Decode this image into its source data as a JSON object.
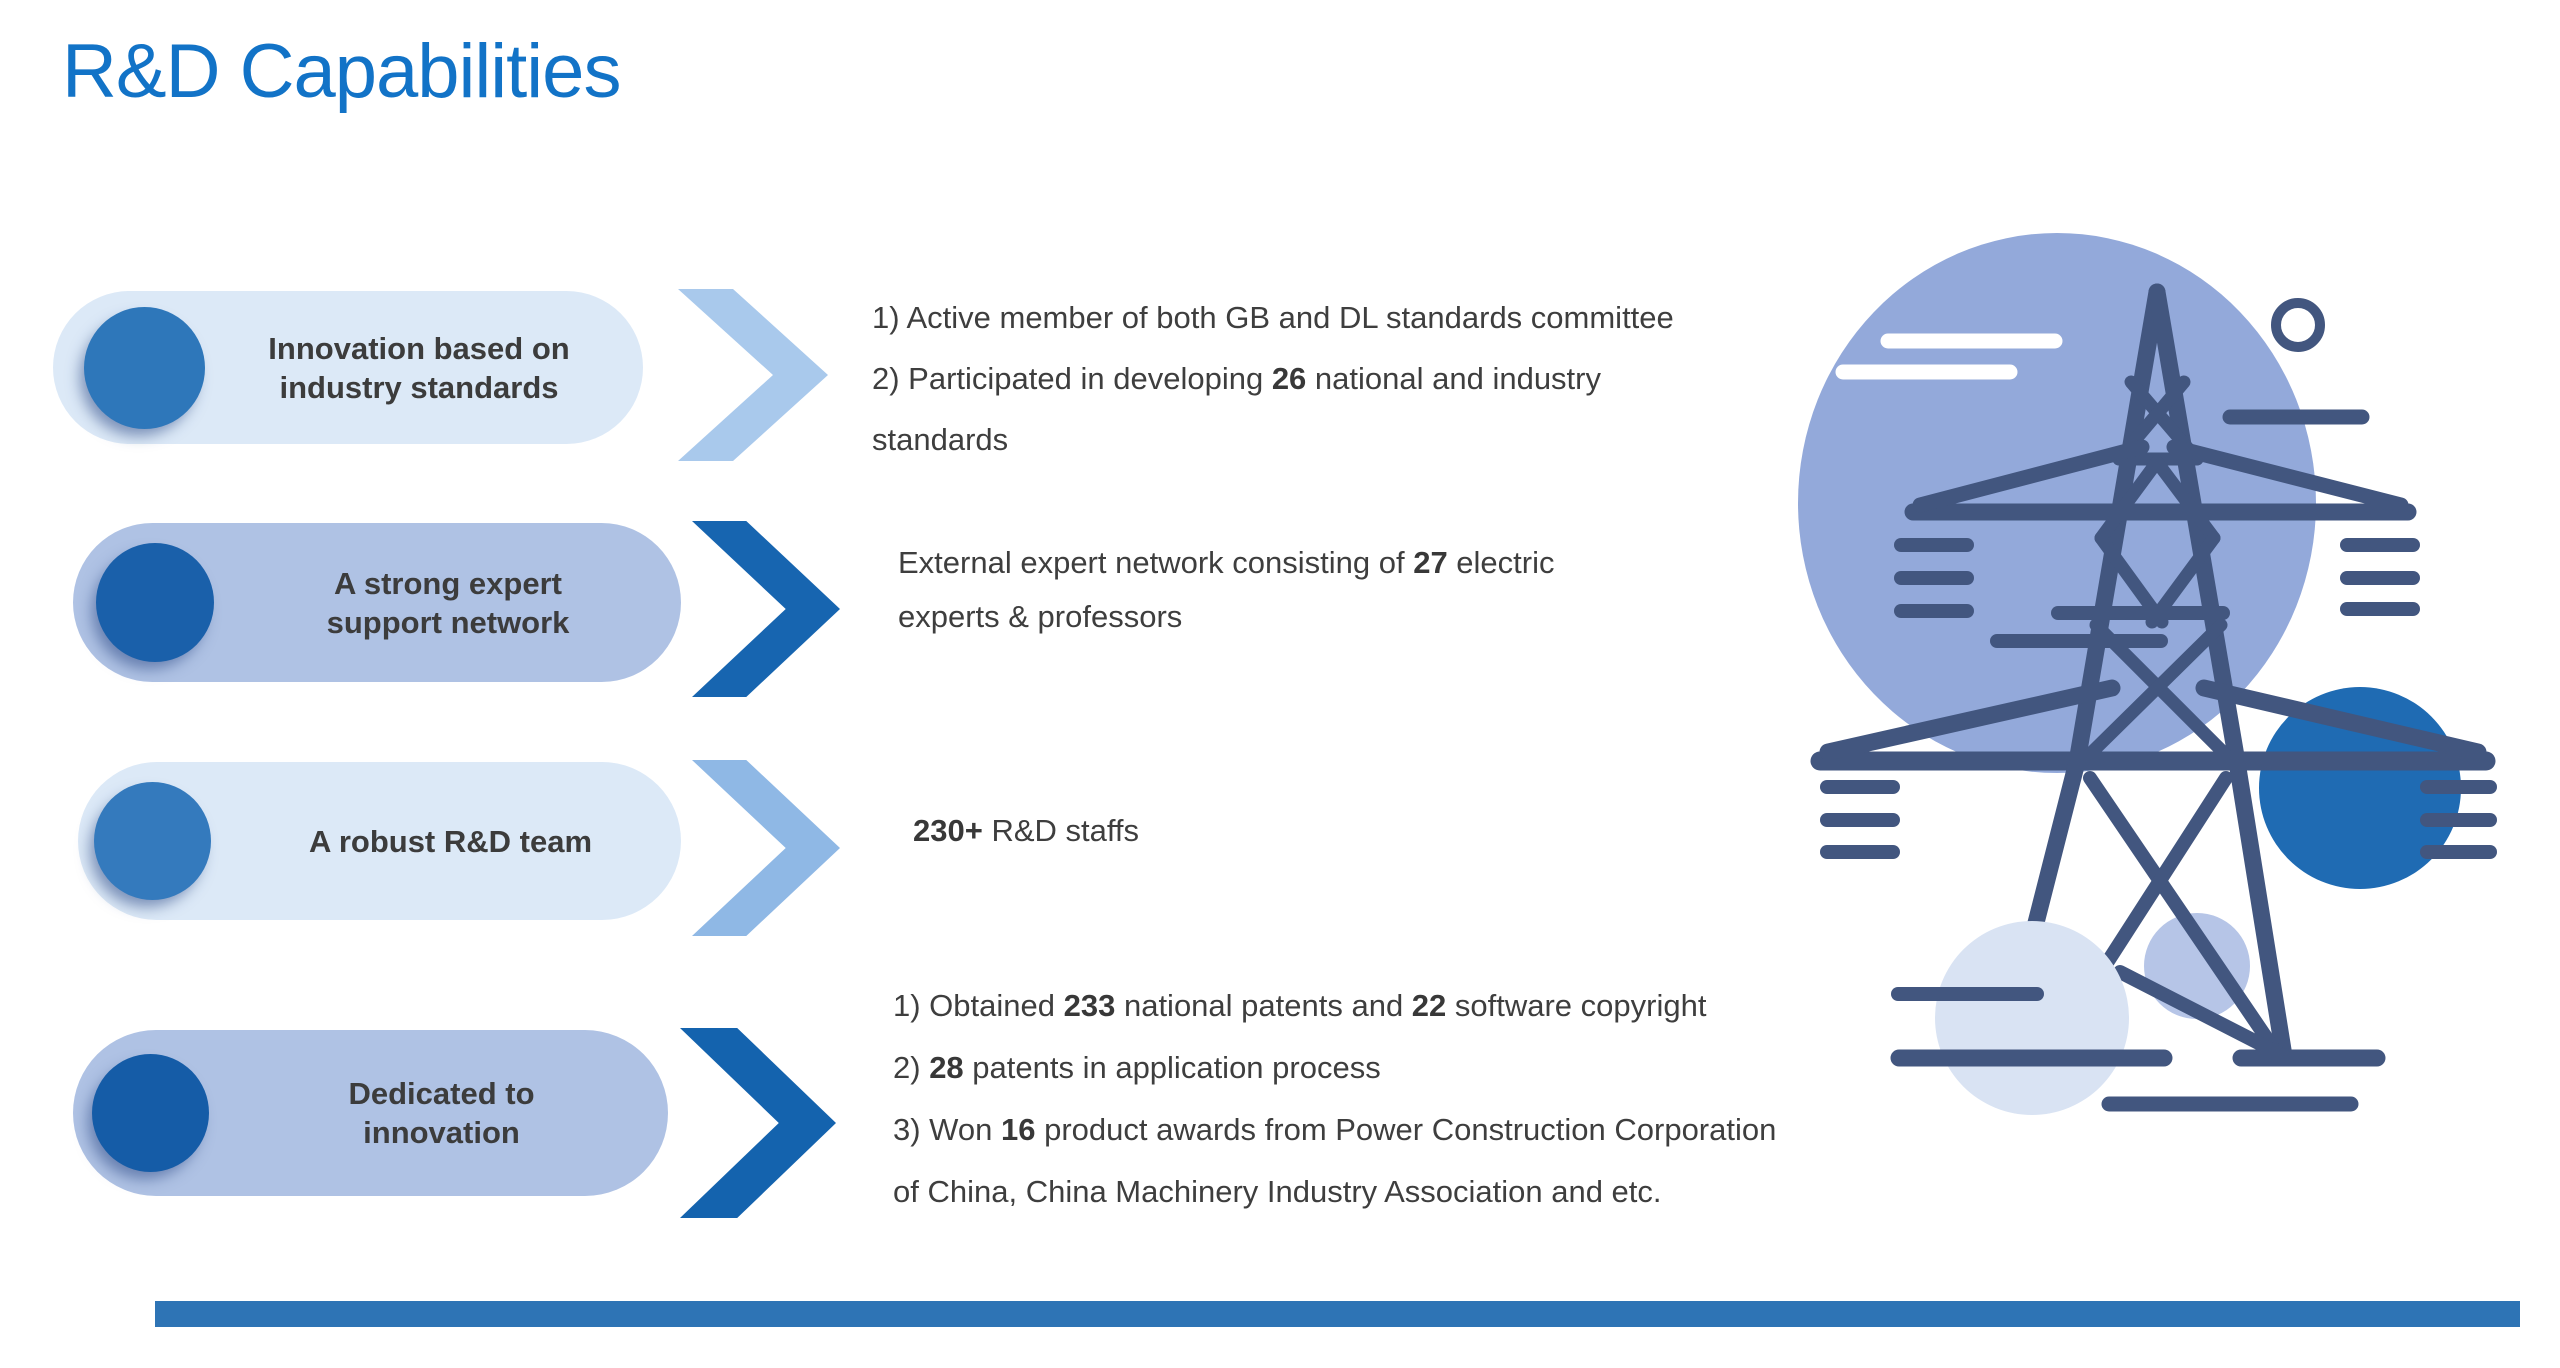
{
  "title": "R&D Capabilities",
  "colors": {
    "title_blue": "#1273C7",
    "pill_light": "#DCE9F7",
    "pill_medium": "#AFC2E4",
    "bullet_circle_light_row": "#2E77BA",
    "bullet_circle_dark_row": "#1A60AA",
    "chevron_light": "#A9C9EC",
    "chevron_dark": "#1765B0",
    "body_text": "#3E3E3E",
    "illustration_navy": "#42567F",
    "illustration_periwinkle": "#93A9DA",
    "illustration_dark_blue": "#1F6BB3",
    "illustration_light_blue": "#D9E3F3",
    "footer_bar": "#2E74B5"
  },
  "rows": [
    {
      "label_lines": [
        "Innovation based on",
        "industry standards"
      ],
      "desc_lines": [
        [
          {
            "t": "1) Active member of both GB and DL standards committee",
            "b": false
          }
        ],
        [
          {
            "t": "2) Participated in developing ",
            "b": false
          },
          {
            "t": "26",
            "b": true
          },
          {
            "t": " national and industry",
            "b": false
          }
        ],
        [
          {
            "t": "standards",
            "b": false
          }
        ]
      ]
    },
    {
      "label_lines": [
        "A strong expert",
        "support network"
      ],
      "desc_lines": [
        [
          {
            "t": "External expert network consisting of ",
            "b": false
          },
          {
            "t": "27",
            "b": true
          },
          {
            "t": " electric",
            "b": false
          }
        ],
        [
          {
            "t": "experts & professors",
            "b": false
          }
        ]
      ]
    },
    {
      "label_lines": [
        "A robust R&D team"
      ],
      "desc_lines": [
        [
          {
            "t": "230+",
            "b": true
          },
          {
            "t": " R&D staffs",
            "b": false
          }
        ]
      ]
    },
    {
      "label_lines": [
        "Dedicated to",
        "innovation"
      ],
      "desc_lines": [
        [
          {
            "t": "1) Obtained ",
            "b": false
          },
          {
            "t": "233",
            "b": true
          },
          {
            "t": " national patents and ",
            "b": false
          },
          {
            "t": "22",
            "b": true
          },
          {
            "t": " software copyright",
            "b": false
          }
        ],
        [
          {
            "t": "2) ",
            "b": false
          },
          {
            "t": "28",
            "b": true
          },
          {
            "t": " patents in application process",
            "b": false
          }
        ],
        [
          {
            "t": "3) Won ",
            "b": false
          },
          {
            "t": "16",
            "b": true
          },
          {
            "t": " product awards from Power Construction Corporation",
            "b": false
          }
        ],
        [
          {
            "t": "of China, China Machinery Industry Association and etc.",
            "b": false
          }
        ]
      ]
    }
  ],
  "illustration": {
    "subject": "transmission-tower"
  }
}
